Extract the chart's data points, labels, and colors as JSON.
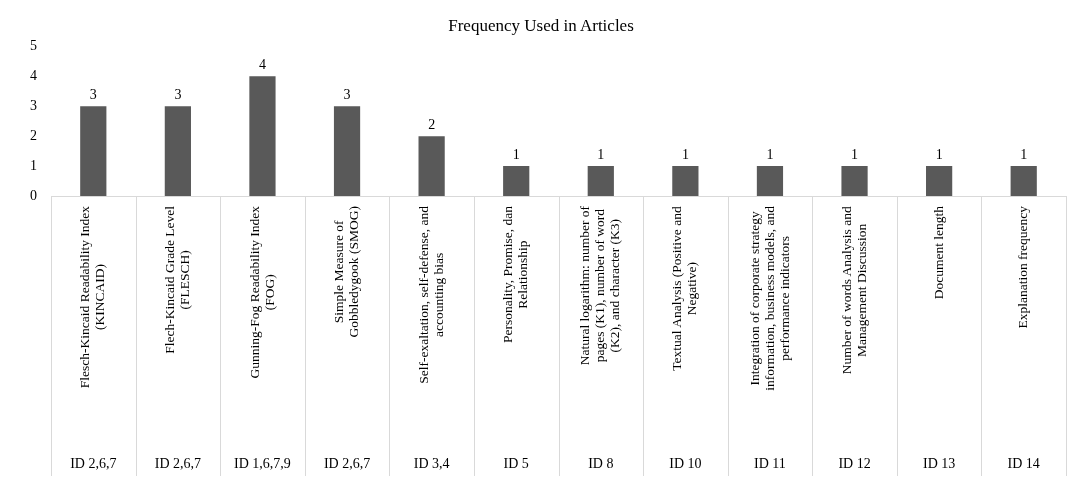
{
  "chart_data": {
    "type": "bar",
    "title": "Frequency Used in Articles",
    "categories": [
      "Flesch-Kincaid Readability Index (KINCAID)",
      "Flech-Kincaid Grade Level (FLESCH)",
      "Gunning-Fog Readability Index (FOG)",
      "Simple Measure of Gobbledygook (SMOG)",
      "Self-exaltation, self-defense, and accounting bias",
      "Personality, Promise, dan Relationship",
      "Natural logarithm: number of pages (K1), number of word (K2), and character (K3)",
      "Textual Analysis (Positive and Negative)",
      "Integration of corporate strategy information, business models, and performance indicators",
      "Number of words Analysis and Management Discussion",
      "Document length",
      "Explanation frequency"
    ],
    "values": [
      3,
      3,
      4,
      3,
      2,
      1,
      1,
      1,
      1,
      1,
      1,
      1
    ],
    "color": "#595959",
    "data_labels": true,
    "ylim": [
      0,
      5
    ],
    "yticks": [
      0,
      1,
      2,
      3,
      4,
      5
    ],
    "grid": false,
    "annotations": [
      "ID 2,6,7",
      "ID 2,6,7",
      "ID 1,6,7,9",
      "ID 2,6,7",
      "ID 3,4",
      "ID 5",
      "ID 8",
      "ID 10",
      "ID 11",
      "ID 12",
      "ID 13",
      "ID 14"
    ]
  }
}
